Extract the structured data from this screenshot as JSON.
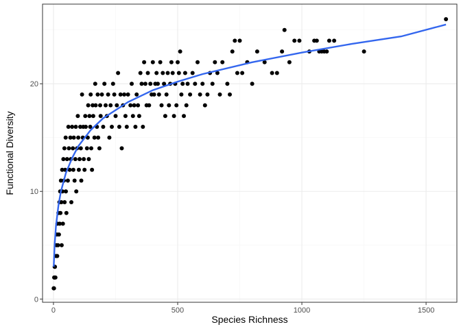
{
  "chart_data": {
    "type": "scatter",
    "title": "",
    "xlabel": "Species Richness",
    "ylabel": "Functional Diversity",
    "xlim": [
      -44,
      1624
    ],
    "ylim": [
      -0.3,
      27.4
    ],
    "xticks": [
      0,
      500,
      1000,
      1500
    ],
    "yticks": [
      0,
      10,
      20
    ],
    "grid": true,
    "legend": "none",
    "colors": {
      "points": "#000000",
      "fit_line": "#3366ee",
      "panel_border": "#333333",
      "grid_major": "#ebebeb",
      "grid_minor": "#f5f5f5"
    },
    "series": [
      {
        "kind": "points",
        "points": [
          [
            1,
            1
          ],
          [
            2,
            1
          ],
          [
            3,
            2
          ],
          [
            4,
            2
          ],
          [
            5,
            3
          ],
          [
            6,
            3
          ],
          [
            8,
            2
          ],
          [
            10,
            4
          ],
          [
            12,
            5
          ],
          [
            14,
            6
          ],
          [
            15,
            4
          ],
          [
            16,
            7
          ],
          [
            18,
            5
          ],
          [
            20,
            8
          ],
          [
            22,
            6
          ],
          [
            24,
            9
          ],
          [
            25,
            7
          ],
          [
            27,
            10
          ],
          [
            28,
            8
          ],
          [
            30,
            11
          ],
          [
            32,
            9
          ],
          [
            33,
            5
          ],
          [
            35,
            12
          ],
          [
            36,
            10
          ],
          [
            38,
            7
          ],
          [
            40,
            13
          ],
          [
            42,
            11
          ],
          [
            44,
            14
          ],
          [
            45,
            9
          ],
          [
            47,
            12
          ],
          [
            49,
            15
          ],
          [
            50,
            10
          ],
          [
            52,
            8
          ],
          [
            55,
            13
          ],
          [
            58,
            11
          ],
          [
            60,
            16
          ],
          [
            62,
            14
          ],
          [
            65,
            12
          ],
          [
            68,
            15
          ],
          [
            70,
            13
          ],
          [
            72,
            9
          ],
          [
            75,
            16
          ],
          [
            78,
            14
          ],
          [
            80,
            12
          ],
          [
            82,
            15
          ],
          [
            85,
            11
          ],
          [
            88,
            13
          ],
          [
            90,
            16
          ],
          [
            92,
            10
          ],
          [
            95,
            14
          ],
          [
            98,
            17
          ],
          [
            100,
            15
          ],
          [
            102,
            12
          ],
          [
            105,
            13
          ],
          [
            108,
            16
          ],
          [
            110,
            14
          ],
          [
            112,
            11
          ],
          [
            115,
            19
          ],
          [
            118,
            15
          ],
          [
            120,
            16
          ],
          [
            122,
            13
          ],
          [
            125,
            12
          ],
          [
            128,
            17
          ],
          [
            130,
            16
          ],
          [
            135,
            14
          ],
          [
            138,
            15
          ],
          [
            140,
            18
          ],
          [
            142,
            13
          ],
          [
            145,
            17
          ],
          [
            148,
            16
          ],
          [
            150,
            19
          ],
          [
            152,
            14
          ],
          [
            155,
            12
          ],
          [
            158,
            18
          ],
          [
            160,
            17
          ],
          [
            165,
            15
          ],
          [
            168,
            20
          ],
          [
            170,
            18
          ],
          [
            175,
            16
          ],
          [
            178,
            19
          ],
          [
            180,
            15
          ],
          [
            185,
            14
          ],
          [
            188,
            18
          ],
          [
            190,
            17
          ],
          [
            195,
            19
          ],
          [
            200,
            16
          ],
          [
            205,
            20
          ],
          [
            210,
            18
          ],
          [
            215,
            17
          ],
          [
            220,
            19
          ],
          [
            225,
            15
          ],
          [
            230,
            18
          ],
          [
            235,
            16
          ],
          [
            240,
            20
          ],
          [
            245,
            19
          ],
          [
            250,
            17
          ],
          [
            255,
            18
          ],
          [
            260,
            21
          ],
          [
            265,
            16
          ],
          [
            270,
            19
          ],
          [
            275,
            14
          ],
          [
            280,
            18
          ],
          [
            285,
            19
          ],
          [
            290,
            17
          ],
          [
            295,
            16
          ],
          [
            300,
            19
          ],
          [
            310,
            18
          ],
          [
            315,
            20
          ],
          [
            320,
            17
          ],
          [
            325,
            18
          ],
          [
            330,
            16
          ],
          [
            335,
            19
          ],
          [
            340,
            18
          ],
          [
            345,
            17
          ],
          [
            350,
            21
          ],
          [
            355,
            20
          ],
          [
            360,
            16
          ],
          [
            365,
            22
          ],
          [
            370,
            20
          ],
          [
            375,
            18
          ],
          [
            380,
            21
          ],
          [
            385,
            18
          ],
          [
            390,
            20
          ],
          [
            395,
            19
          ],
          [
            400,
            22
          ],
          [
            405,
            19
          ],
          [
            410,
            20
          ],
          [
            415,
            21
          ],
          [
            420,
            20
          ],
          [
            425,
            19
          ],
          [
            430,
            22
          ],
          [
            435,
            18
          ],
          [
            440,
            21
          ],
          [
            445,
            20
          ],
          [
            450,
            17
          ],
          [
            455,
            19
          ],
          [
            460,
            21
          ],
          [
            465,
            18
          ],
          [
            470,
            20
          ],
          [
            475,
            22
          ],
          [
            480,
            21
          ],
          [
            485,
            17
          ],
          [
            490,
            20
          ],
          [
            495,
            18
          ],
          [
            500,
            22
          ],
          [
            505,
            21
          ],
          [
            510,
            23
          ],
          [
            515,
            19
          ],
          [
            520,
            20
          ],
          [
            525,
            17
          ],
          [
            530,
            21
          ],
          [
            535,
            18
          ],
          [
            540,
            20
          ],
          [
            550,
            19
          ],
          [
            560,
            21
          ],
          [
            570,
            20
          ],
          [
            580,
            22
          ],
          [
            590,
            19
          ],
          [
            600,
            20
          ],
          [
            610,
            18
          ],
          [
            620,
            19
          ],
          [
            630,
            21
          ],
          [
            640,
            20
          ],
          [
            650,
            22
          ],
          [
            660,
            21
          ],
          [
            670,
            19
          ],
          [
            680,
            22
          ],
          [
            700,
            20
          ],
          [
            710,
            19
          ],
          [
            720,
            23
          ],
          [
            730,
            24
          ],
          [
            740,
            21
          ],
          [
            750,
            24
          ],
          [
            760,
            21
          ],
          [
            780,
            22
          ],
          [
            800,
            20
          ],
          [
            820,
            23
          ],
          [
            850,
            22
          ],
          [
            880,
            21
          ],
          [
            900,
            21
          ],
          [
            920,
            23
          ],
          [
            930,
            25
          ],
          [
            950,
            22
          ],
          [
            970,
            24
          ],
          [
            990,
            24
          ],
          [
            1030,
            23
          ],
          [
            1050,
            24
          ],
          [
            1060,
            24
          ],
          [
            1070,
            23
          ],
          [
            1080,
            23
          ],
          [
            1090,
            23
          ],
          [
            1100,
            23
          ],
          [
            1110,
            24
          ],
          [
            1130,
            24
          ],
          [
            1250,
            23
          ],
          [
            1580,
            26
          ]
        ]
      },
      {
        "kind": "fit_line",
        "x": [
          1,
          5,
          10,
          20,
          30,
          50,
          75,
          100,
          150,
          200,
          300,
          400,
          500,
          600,
          800,
          1000,
          1200,
          1400,
          1580
        ],
        "y": [
          3.0,
          5.1,
          6.8,
          8.7,
          10.0,
          11.7,
          13.1,
          14.2,
          15.7,
          16.8,
          18.3,
          19.4,
          20.2,
          20.9,
          22.0,
          22.9,
          23.7,
          24.4,
          25.5
        ]
      }
    ]
  }
}
